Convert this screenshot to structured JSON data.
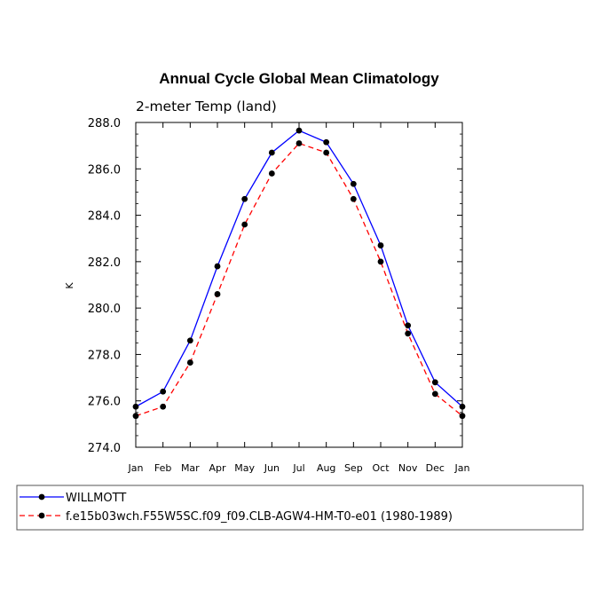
{
  "chart_data": {
    "type": "line",
    "title": "Annual Cycle Global Mean Climatology",
    "subtitle": "2-meter Temp (land)",
    "xlabel": "",
    "ylabel": "K",
    "categories": [
      "Jan",
      "Feb",
      "Mar",
      "Apr",
      "May",
      "Jun",
      "Jul",
      "Aug",
      "Sep",
      "Oct",
      "Nov",
      "Dec",
      "Jan"
    ],
    "yticks": [
      "274.0",
      "276.0",
      "278.0",
      "280.0",
      "282.0",
      "284.0",
      "286.0",
      "288.0"
    ],
    "ylim": [
      274,
      288
    ],
    "grid": false,
    "legend_position": "bottom",
    "series": [
      {
        "name": "WILLMOTT",
        "color": "#0000ff",
        "dash": "solid",
        "values": [
          275.75,
          276.4,
          278.6,
          281.8,
          284.7,
          286.7,
          287.65,
          287.15,
          285.35,
          282.7,
          279.25,
          276.8,
          275.75
        ]
      },
      {
        "name": "f.e15b03wch.F55W5SC.f09_f09.CLB-AGW4-HM-T0-e01 (1980-1989)",
        "color": "#ff0000",
        "dash": "dashed",
        "values": [
          275.35,
          275.75,
          277.65,
          280.6,
          283.6,
          285.8,
          287.1,
          286.7,
          284.7,
          282.0,
          278.9,
          276.3,
          275.35
        ]
      }
    ]
  }
}
